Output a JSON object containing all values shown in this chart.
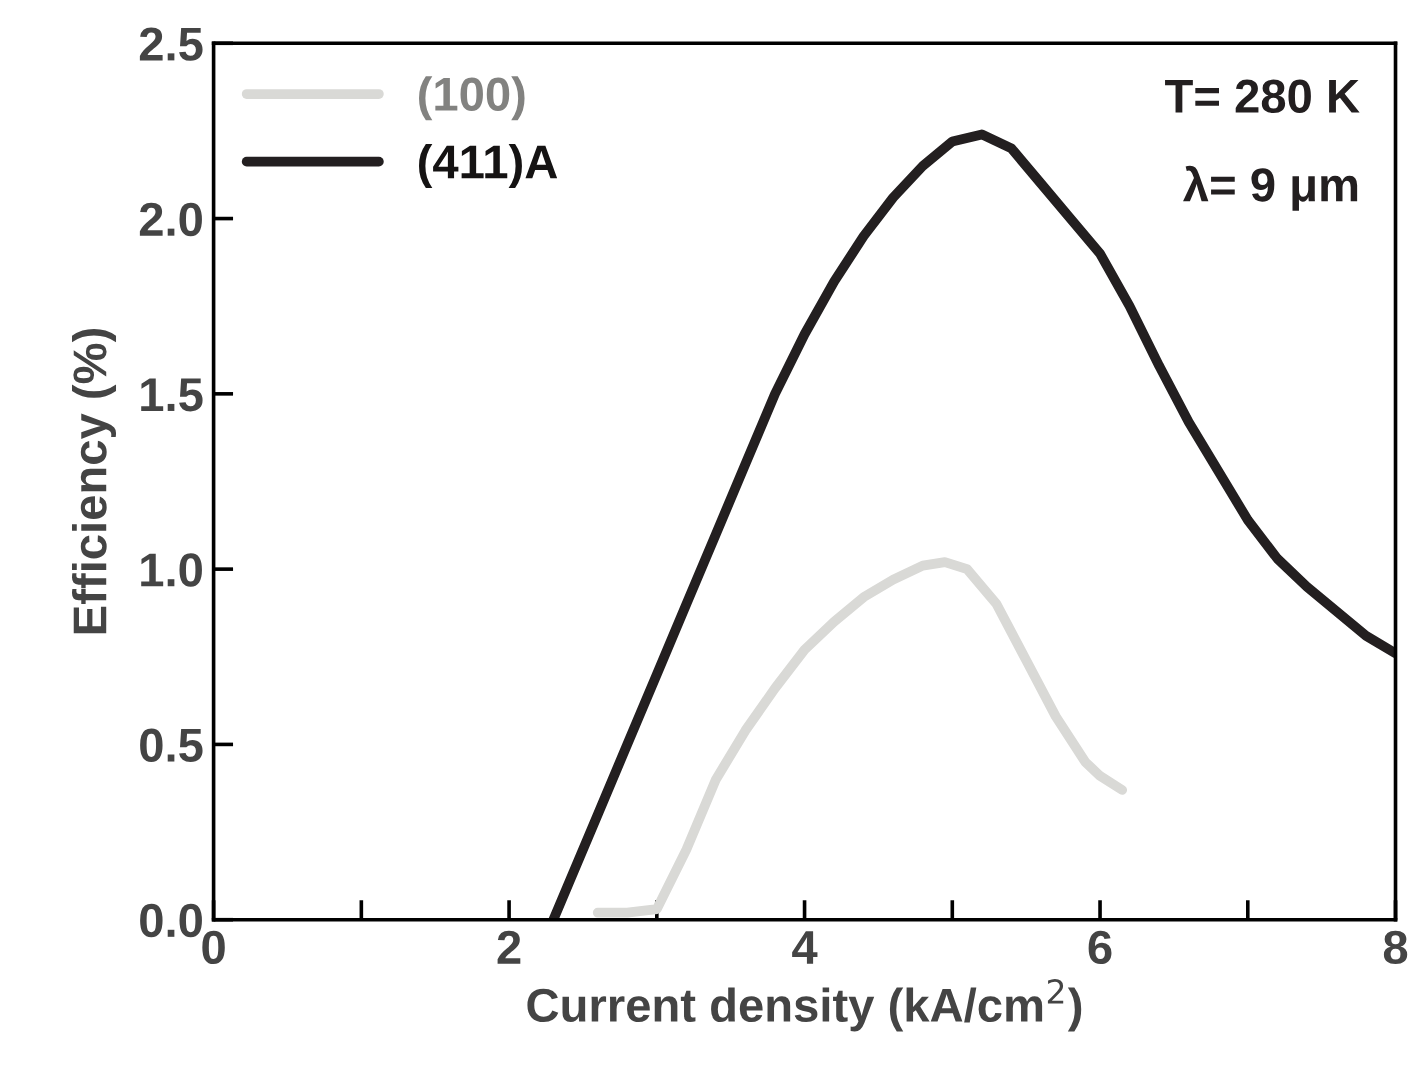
{
  "chart_data": {
    "type": "line",
    "xlabel": "Current density (kA/cm$^{2}$)",
    "ylabel": "Efficiency (%)",
    "xlim": [
      0,
      8
    ],
    "xticks": [
      0,
      {
        "value": 1,
        "label": null
      },
      2,
      {
        "value": 3,
        "label": null
      },
      4,
      {
        "value": 5,
        "label": null
      },
      6,
      {
        "value": 7,
        "label": null
      },
      8
    ],
    "ylim": [
      0,
      2.5
    ],
    "yticks": [
      {
        "value": 0,
        "label": "0.0"
      },
      0.5,
      {
        "value": 1,
        "label": "1.0"
      },
      1.5,
      {
        "value": 2,
        "label": "2.0"
      },
      2.5
    ],
    "series": [
      {
        "name": "(100)",
        "color": "#d9d9d6",
        "x": [
          2.6,
          2.8,
          3.0,
          3.2,
          3.4,
          3.6,
          3.8,
          4.0,
          4.2,
          4.4,
          4.6,
          4.8,
          4.95,
          5.1,
          5.3,
          5.5,
          5.7,
          5.9,
          6.0,
          6.15
        ],
        "values": [
          0.02,
          0.02,
          0.03,
          0.2,
          0.4,
          0.54,
          0.66,
          0.77,
          0.85,
          0.92,
          0.97,
          1.01,
          1.02,
          1.0,
          0.9,
          0.74,
          0.58,
          0.45,
          0.41,
          0.37
        ]
      },
      {
        "name": "(411)A",
        "color": "#231f20",
        "x": [
          2.3,
          2.4,
          2.6,
          2.8,
          3.0,
          3.2,
          3.4,
          3.6,
          3.8,
          4.0,
          4.2,
          4.4,
          4.6,
          4.8,
          5.0,
          5.2,
          5.4,
          5.6,
          5.8,
          6.0,
          6.2,
          6.4,
          6.6,
          6.8,
          7.0,
          7.2,
          7.4,
          7.6,
          7.8,
          8.0
        ],
        "values": [
          0.0,
          0.1,
          0.3,
          0.5,
          0.7,
          0.9,
          1.1,
          1.3,
          1.5,
          1.67,
          1.82,
          1.95,
          2.06,
          2.15,
          2.22,
          2.24,
          2.2,
          2.1,
          2.0,
          1.9,
          1.75,
          1.58,
          1.42,
          1.28,
          1.14,
          1.03,
          0.95,
          0.88,
          0.81,
          0.76
        ]
      }
    ],
    "legend": "top left",
    "marker": "none",
    "line_style": "solid",
    "grid": false,
    "annotations": [
      "T= 280 K",
      "λ= 9 μm"
    ]
  }
}
